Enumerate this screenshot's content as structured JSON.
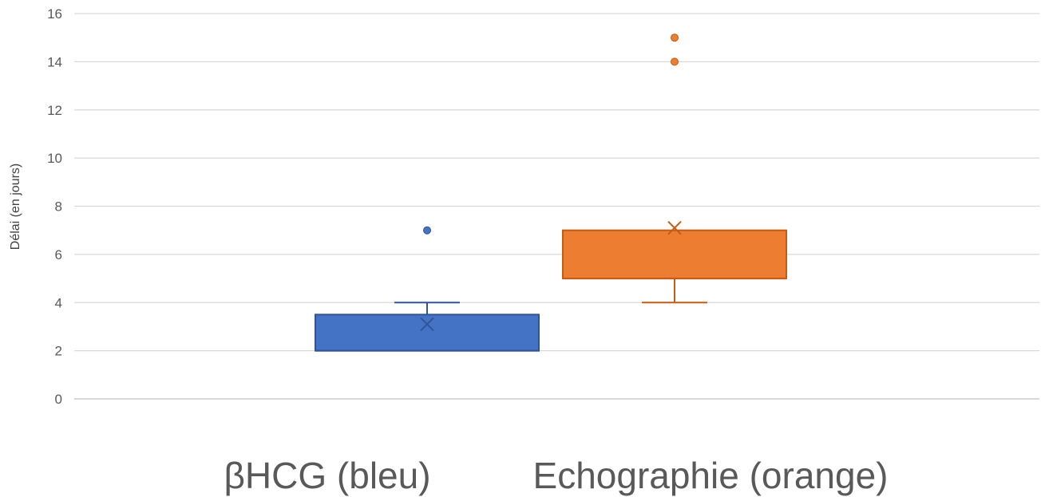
{
  "chart_data": {
    "type": "box",
    "title": "",
    "xlabel": "",
    "ylabel": "Délai (en jours)",
    "ylim": [
      0,
      16
    ],
    "yticks": [
      0,
      2,
      4,
      6,
      8,
      10,
      12,
      14,
      16
    ],
    "grid": true,
    "legend": "none",
    "categories": [
      "βHCG (bleu)",
      "Echographie (orange)"
    ],
    "series": [
      {
        "color": "#4472C4",
        "min": 2,
        "q1": 2,
        "median": 2,
        "q3": 3.5,
        "max": 4,
        "mean": 3.1,
        "outliers": [
          7
        ]
      },
      {
        "color": "#ED7D31",
        "min": 4,
        "q1": 5,
        "median": 5,
        "q3": 7,
        "max": 7,
        "mean": 7.1,
        "outliers": [
          14,
          15
        ]
      }
    ]
  }
}
